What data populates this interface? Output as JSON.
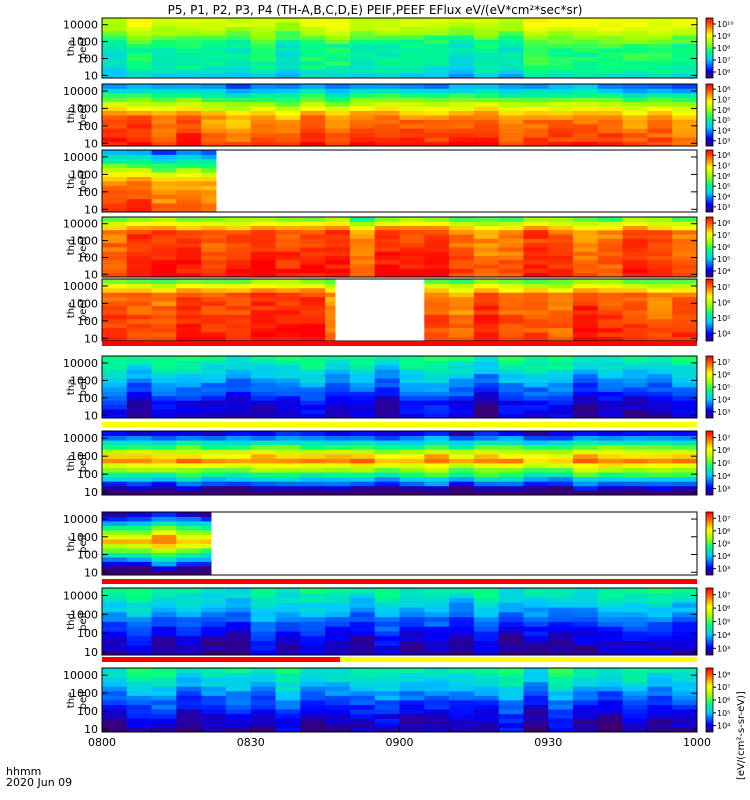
{
  "chart_data": {
    "type": "heatmap",
    "title": "P5, P1, P2, P3, P4 (TH-A,B,C,D,E) PEIF,PEEF EFlux eV/(eV*cm²*sec*sr)",
    "xlabel": "hhmm",
    "date_label": "2020 Jun 09",
    "x_ticks": [
      "0800",
      "0830",
      "0900",
      "0930",
      "1000"
    ],
    "x_range": [
      "08:00",
      "10:00"
    ],
    "y_scale": "log",
    "y_ticks": [
      "10",
      "100",
      "1000",
      "10000"
    ],
    "y_range_eV": [
      7,
      25000
    ],
    "colorbar_label": "[eV/(cm²-s-sr-eV)]",
    "colormap": [
      "#3a0070",
      "#0000ff",
      "#00c8ff",
      "#00ff80",
      "#a0ff00",
      "#ffff00",
      "#ff8000",
      "#ff0000",
      "#ffffff"
    ],
    "panels": [
      {
        "id": "tha",
        "species": "peef",
        "label_line1": "tha",
        "label_line2": "peef",
        "profile": "flux_hi_energy",
        "data_coverage": [
          [
            "08:00",
            "10:00"
          ]
        ],
        "cbar_ticks": [
          "10⁶",
          "10⁷",
          "10⁸",
          "10⁹",
          "10¹⁰"
        ],
        "flag_bar": null
      },
      {
        "id": "thb",
        "species": "peef",
        "label_line1": "thb",
        "label_line2": "peef",
        "profile": "plasma_sheet_low",
        "data_coverage": [
          [
            "08:00",
            "10:00"
          ]
        ],
        "cbar_ticks": [
          "10³",
          "10⁴",
          "10⁵",
          "10⁶",
          "10⁷",
          "10⁸"
        ],
        "flag_bar": null
      },
      {
        "id": "thc",
        "species": "peef",
        "label_line1": "thc",
        "label_line2": "peef",
        "profile": "plasma_sheet_low",
        "data_coverage": [
          [
            "08:00",
            "08:23"
          ]
        ],
        "cbar_ticks": [
          "10³",
          "10⁴",
          "10⁵",
          "10⁶",
          "10⁷",
          "10⁸"
        ],
        "flag_bar": null
      },
      {
        "id": "thd",
        "species": "peef",
        "label_line1": "thd",
        "label_line2": "peef",
        "profile": "plasma_sheet_mid",
        "data_coverage": [
          [
            "08:00",
            "10:00"
          ]
        ],
        "cbar_ticks": [
          "10⁴",
          "10⁵",
          "10⁶",
          "10⁷",
          "10⁸"
        ],
        "flag_bar": null
      },
      {
        "id": "the",
        "species": "peef",
        "label_line1": "the",
        "label_line2": "peef",
        "profile": "plasma_sheet_mid",
        "data_coverage": [
          [
            "08:00",
            "08:47"
          ],
          [
            "09:05",
            "10:00"
          ]
        ],
        "cbar_ticks": [
          "10⁴",
          "10⁵",
          "10⁶",
          "10⁷"
        ],
        "flag_bar": {
          "color": "#ff0000",
          "until": "10:00"
        }
      },
      {
        "id": "tha_i",
        "species": "peif",
        "label_line1": "tha",
        "label_line2": "peif",
        "profile": "ion_hi",
        "data_coverage": [
          [
            "08:00",
            "10:00"
          ]
        ],
        "cbar_ticks": [
          "10³",
          "10⁴",
          "10⁵",
          "10⁶",
          "10⁷"
        ],
        "flag_bar": {
          "color": "#ffff00",
          "until": "10:00"
        }
      },
      {
        "id": "thb_i",
        "species": "peif",
        "label_line1": "thb",
        "label_line2": "peif",
        "profile": "ion_mid",
        "data_coverage": [
          [
            "08:00",
            "10:00"
          ]
        ],
        "cbar_ticks": [
          "10³",
          "10⁴",
          "10⁵",
          "10⁶",
          "10⁷"
        ],
        "flag_bar": null
      },
      {
        "id": "thc_i",
        "species": "peif",
        "label_line1": "thc",
        "label_line2": "peif",
        "profile": "ion_mid",
        "data_coverage": [
          [
            "08:00",
            "08:22"
          ]
        ],
        "cbar_ticks": [
          "10³",
          "10⁴",
          "10⁵",
          "10⁶",
          "10⁷"
        ],
        "flag_bar": {
          "color": "#ff0000",
          "until": "10:00"
        }
      },
      {
        "id": "thd_i",
        "species": "peif",
        "label_line1": "thd",
        "label_line2": "peif",
        "profile": "ion_hi",
        "data_coverage": [
          [
            "08:00",
            "10:00"
          ]
        ],
        "cbar_ticks": [
          "10³",
          "10⁴",
          "10⁵",
          "10⁶",
          "10⁷"
        ],
        "flag_bar": {
          "color": "#ff0000",
          "until": "08:48",
          "rest_color": "#ffff00"
        }
      },
      {
        "id": "the_i",
        "species": "peif",
        "label_line1": "the",
        "label_line2": "peif",
        "profile": "ion_hi",
        "data_coverage": [
          [
            "08:00",
            "10:00"
          ]
        ],
        "cbar_ticks": [
          "10⁴",
          "10⁵",
          "10⁶",
          "10⁷",
          "10⁸"
        ],
        "flag_bar": null
      }
    ]
  }
}
